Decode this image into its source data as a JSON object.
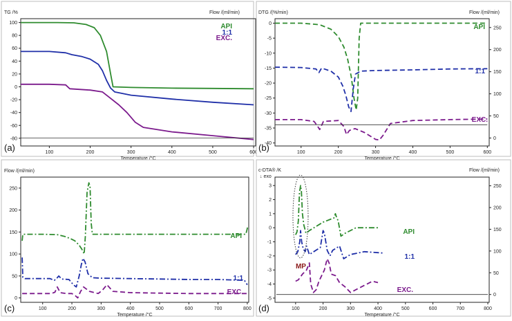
{
  "chart_data": [
    {
      "type": "line",
      "panel_label": "(a)",
      "ylabel_left": "TG /%",
      "ylabel_right": "Flow /(ml/min)",
      "xlabel": "Temperature /°C",
      "xlim": [
        30,
        605
      ],
      "ylim_left": [
        -92,
        106
      ],
      "ylim_right": [
        -18,
        270
      ],
      "xticks": [
        100,
        200,
        300,
        400,
        500,
        600
      ],
      "yticks_left": [
        100,
        80,
        60,
        40,
        20,
        0,
        -20,
        -40,
        -60,
        -80
      ],
      "yticks_right": [
        250,
        200,
        150,
        100,
        50,
        0
      ],
      "series": [
        {
          "name": "API",
          "color": "#2e8b2e",
          "style": "solid",
          "x": [
            30,
            120,
            160,
            190,
            210,
            225,
            240,
            250,
            256,
            300,
            400,
            500,
            600
          ],
          "y": [
            100,
            100,
            99.5,
            97,
            92,
            80,
            55,
            20,
            0,
            -1,
            -2,
            -2.5,
            -3
          ]
        },
        {
          "name": "1:1",
          "color": "#1f2fa8",
          "style": "solid",
          "x": [
            30,
            100,
            140,
            155,
            180,
            200,
            220,
            230,
            240,
            250,
            260,
            300,
            400,
            500,
            600
          ],
          "y": [
            55,
            55,
            53,
            50,
            47,
            43,
            35,
            25,
            10,
            -2,
            -8,
            -13,
            -19,
            -24,
            -28
          ]
        },
        {
          "name": "EXC.",
          "color": "#7b1a8c",
          "style": "solid",
          "x": [
            30,
            100,
            140,
            150,
            200,
            230,
            250,
            270,
            290,
            310,
            330,
            400,
            500,
            600
          ],
          "y": [
            4,
            4,
            3,
            -3,
            -5,
            -8,
            -18,
            -28,
            -40,
            -55,
            -63,
            -70,
            -76,
            -82
          ]
        },
        {
          "name": "",
          "color": "#333333",
          "style": "thin",
          "axis": "right",
          "x": [
            30,
            600
          ],
          "y": [
            0,
            0
          ]
        }
      ]
    },
    {
      "type": "line",
      "panel_label": "(b)",
      "ylabel_left": "DTG /(%/min)",
      "ylabel_right": "Flow /(ml/min)",
      "xlabel": "Temperature /°C",
      "xlim": [
        30,
        605
      ],
      "ylim_left": [
        -41,
        1.5
      ],
      "ylim_right": [
        -18,
        270
      ],
      "xticks": [
        100,
        200,
        300,
        400,
        500,
        600
      ],
      "yticks_left": [
        0,
        -5,
        -10,
        -15,
        -20,
        -25,
        -30,
        -35,
        -40
      ],
      "yticks_right": [
        250,
        200,
        150,
        100,
        50,
        0
      ],
      "series": [
        {
          "name": "API",
          "color": "#2e8b2e",
          "style": "dash",
          "x": [
            30,
            100,
            150,
            180,
            200,
            215,
            225,
            235,
            242,
            248,
            252,
            256,
            260,
            300,
            400,
            500,
            600
          ],
          "y": [
            0,
            0,
            -0.5,
            -2,
            -4.5,
            -8,
            -12,
            -18,
            -25,
            -29,
            -25,
            -5,
            0,
            0,
            0,
            0,
            0
          ]
        },
        {
          "name": "1:1",
          "color": "#1f2fa8",
          "style": "dash",
          "x": [
            30,
            100,
            140,
            148,
            155,
            180,
            200,
            212,
            220,
            228,
            234,
            240,
            246,
            260,
            300,
            400,
            500,
            600
          ],
          "y": [
            -14.7,
            -14.8,
            -15.3,
            -16.5,
            -15,
            -16,
            -18,
            -21,
            -24,
            -28,
            -29.5,
            -22,
            -17,
            -16,
            -15.8,
            -15.6,
            -15.3,
            -15.2
          ]
        },
        {
          "name": "EXC.",
          "color": "#7b1a8c",
          "style": "dash",
          "x": [
            30,
            100,
            135,
            142,
            150,
            160,
            200,
            215,
            222,
            230,
            245,
            270,
            300,
            310,
            320,
            340,
            400,
            500,
            600
          ],
          "y": [
            -32.2,
            -32.2,
            -32.8,
            -34,
            -35.5,
            -32.8,
            -32.5,
            -34.5,
            -37.2,
            -35.8,
            -35.2,
            -36.5,
            -38.8,
            -39,
            -37.5,
            -33.5,
            -32.5,
            -32.2,
            -32
          ]
        },
        {
          "name": "",
          "color": "#333333",
          "style": "thin",
          "axis": "right",
          "x": [
            30,
            600
          ],
          "y": [
            30,
            30
          ]
        }
      ]
    },
    {
      "type": "line",
      "panel_label": "(c)",
      "ylabel_left": "Flow /(ml/min)",
      "ylabel_right": "",
      "xlabel": "Temperature /°C",
      "xlim": [
        25,
        805
      ],
      "ylim_left": [
        -10,
        275
      ],
      "xticks": [
        100,
        200,
        300,
        400,
        500,
        600,
        700,
        800
      ],
      "yticks_left": [
        250,
        200,
        150,
        100,
        50,
        0
      ],
      "series": [
        {
          "name": "API",
          "color": "#2e8b2e",
          "style": "dashdot",
          "x": [
            30,
            32,
            40,
            100,
            150,
            175,
            195,
            210,
            225,
            235,
            242,
            246,
            252,
            258,
            262,
            266,
            270,
            300,
            400,
            500,
            600,
            700,
            795,
            800,
            800
          ],
          "y": [
            130,
            145,
            145,
            145,
            144,
            140,
            135,
            130,
            120,
            110,
            100,
            140,
            240,
            262,
            255,
            170,
            145,
            145,
            145,
            145,
            145,
            145,
            145,
            158,
            165
          ]
        },
        {
          "name": "1:1",
          "color": "#1f2fa8",
          "style": "dashdot",
          "x": [
            30,
            32,
            40,
            100,
            125,
            140,
            150,
            155,
            165,
            190,
            205,
            215,
            225,
            232,
            238,
            245,
            255,
            270,
            300,
            400,
            500,
            600,
            700,
            790,
            800
          ],
          "y": [
            92,
            47,
            44,
            44,
            44,
            40,
            46,
            50,
            43,
            42,
            30,
            25,
            50,
            75,
            90,
            82,
            55,
            46,
            45,
            44,
            43,
            42,
            42,
            40,
            30
          ]
        },
        {
          "name": "EXC.",
          "color": "#7b1a8c",
          "style": "dash",
          "x": [
            30,
            100,
            130,
            142,
            150,
            160,
            180,
            200,
            212,
            220,
            230,
            240,
            260,
            290,
            305,
            320,
            340,
            400,
            500,
            600,
            700,
            800
          ],
          "y": [
            10,
            10,
            10,
            13,
            25,
            12,
            10,
            10,
            5,
            0,
            15,
            25,
            15,
            10,
            18,
            30,
            15,
            12,
            11,
            10,
            10,
            10
          ]
        }
      ]
    },
    {
      "type": "line",
      "panel_label": "(d)",
      "ylabel_left": "c-DTA® /K",
      "ylabel_left_sub": "↓ exo",
      "ylabel_right": "Flow /(ml/min)",
      "xlabel": "Temperature /°C",
      "xlim": [
        25,
        805
      ],
      "ylim_left": [
        -5.3,
        3.6
      ],
      "ylim_right": [
        -18,
        270
      ],
      "xticks": [
        100,
        200,
        300,
        400,
        500,
        600,
        700,
        800
      ],
      "yticks_left": [
        3,
        2,
        1,
        0,
        -1,
        -2,
        -3,
        -4,
        -5
      ],
      "yticks_right": [
        250,
        200,
        150,
        100,
        50,
        0
      ],
      "annotation": {
        "label": "MP",
        "color": "#8b1a1a"
      },
      "series": [
        {
          "name": "API",
          "color": "#2e8b2e",
          "style": "dashdot",
          "x": [
            100,
            105,
            110,
            114,
            118,
            121,
            125,
            130,
            138,
            150,
            200,
            240,
            245,
            250,
            255,
            265,
            280,
            320,
            400
          ],
          "y": [
            -0.5,
            -0.3,
            0.5,
            2.5,
            3.0,
            2.6,
            1.0,
            0.2,
            -0.4,
            -0.2,
            0.4,
            0.7,
            1.0,
            0.7,
            0.5,
            -0.6,
            -0.4,
            0.0,
            0.0
          ]
        },
        {
          "name": "1:1",
          "color": "#1f2fa8",
          "style": "dashdot",
          "x": [
            100,
            108,
            115,
            118,
            122,
            128,
            135,
            140,
            150,
            190,
            200,
            205,
            215,
            225,
            235,
            260,
            275,
            300,
            350,
            420
          ],
          "y": [
            -1.9,
            -1.7,
            -1.0,
            -0.2,
            -1.0,
            -1.5,
            -1.7,
            -1.3,
            -1.9,
            -1.4,
            -0.2,
            -0.4,
            -1.6,
            -2.0,
            -1.6,
            -1.3,
            -2.2,
            -1.9,
            -1.7,
            -1.8
          ]
        },
        {
          "name": "EXC.",
          "color": "#7b1a8c",
          "style": "dash",
          "x": [
            100,
            110,
            125,
            140,
            150,
            155,
            165,
            175,
            185,
            205,
            215,
            222,
            230,
            245,
            260,
            280,
            300,
            340,
            380,
            400
          ],
          "y": [
            -3.8,
            -3.7,
            -3.3,
            -3.0,
            -2.5,
            -4.0,
            -4.6,
            -4.4,
            -3.8,
            -3.0,
            -2.2,
            -2.5,
            -3.3,
            -3.4,
            -3.9,
            -4.2,
            -4.6,
            -4.2,
            -3.8,
            -3.9
          ]
        },
        {
          "name": "",
          "color": "#333333",
          "style": "thin",
          "axis": "right",
          "x": [
            30,
            800
          ],
          "y": [
            0,
            0
          ]
        }
      ]
    }
  ]
}
